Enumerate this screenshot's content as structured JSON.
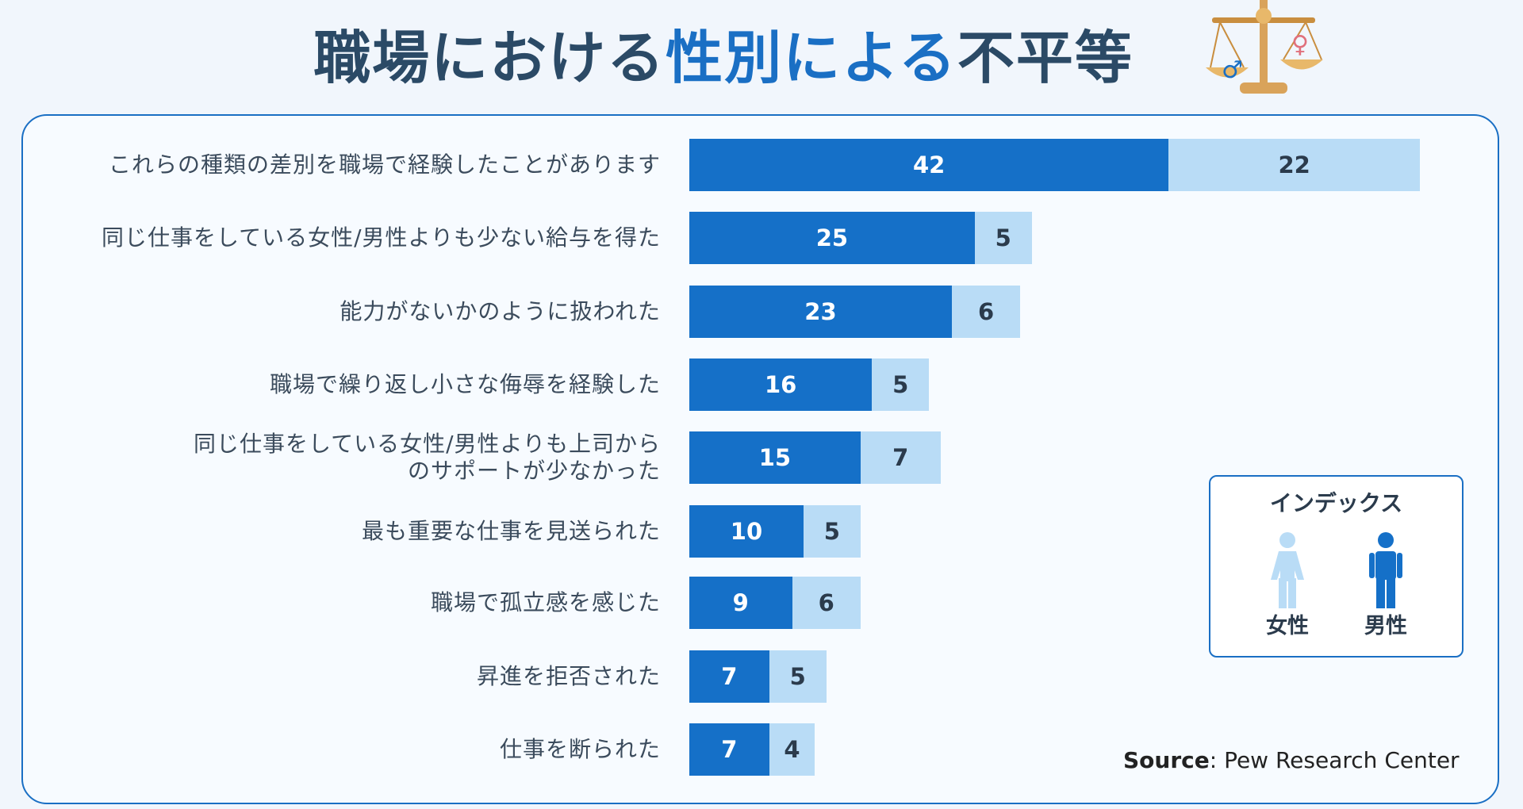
{
  "chart_data": {
    "type": "stacked-bar",
    "title_parts": [
      "職場における",
      "性別による",
      "不平等"
    ],
    "categories": [
      "これらの種類の差別を職場で経験したことがあります",
      "同じ仕事をしている女性/男性よりも少ない給与を得た",
      "能力がないかのように扱われた",
      "職場で繰り返し小さな侮辱を経験した",
      "同じ仕事をしている女性/男性よりも上司から\nのサポートが少なかった",
      "最も重要な仕事を見送られた",
      "職場で孤立感を感じた",
      "昇進を拒否された",
      "仕事を断られた"
    ],
    "series": [
      {
        "name": "女性",
        "color": "#b9dcf6",
        "values": [
          22,
          5,
          6,
          5,
          7,
          5,
          6,
          5,
          4
        ]
      },
      {
        "name": "男性",
        "color": "#1570c8",
        "values": [
          42,
          25,
          23,
          16,
          15,
          10,
          9,
          7,
          7
        ]
      }
    ],
    "legend_title": "インデックス",
    "source_label": "Source",
    "source_text": ": Pew Research Center"
  }
}
